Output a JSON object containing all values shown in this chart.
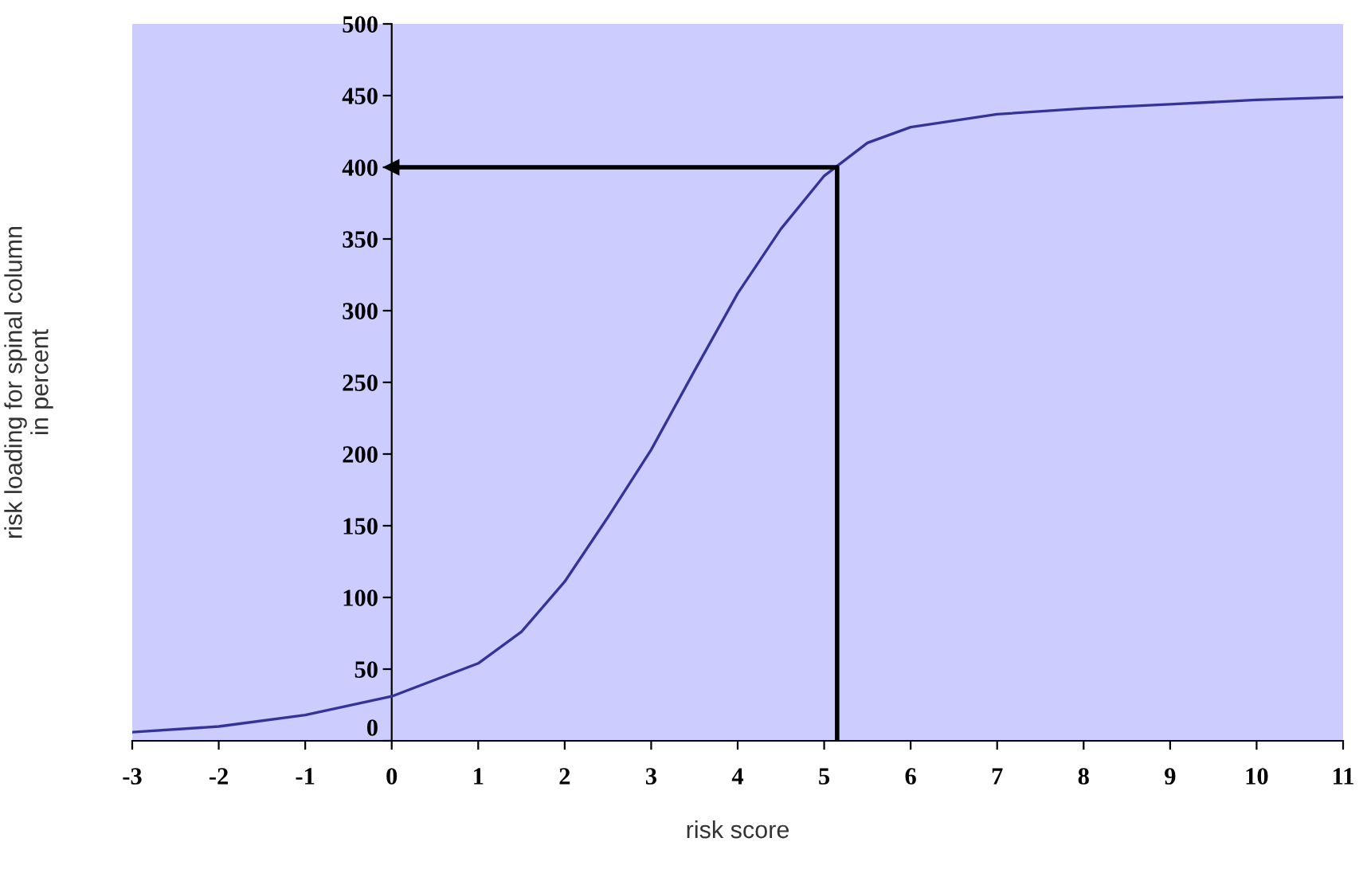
{
  "chart_data": {
    "type": "line",
    "xlabel": "risk score",
    "ylabel": "risk loading for spinal column\nin percent",
    "xlim": [
      -3,
      11
    ],
    "xticks": [
      -3,
      -2,
      -1,
      0,
      1,
      2,
      3,
      4,
      5,
      6,
      7,
      8,
      9,
      10,
      11
    ],
    "ylim": [
      0,
      500
    ],
    "yticks": [
      0,
      50,
      100,
      150,
      200,
      250,
      300,
      350,
      400,
      450,
      500
    ],
    "grid": false,
    "legend": false,
    "marker": "none",
    "line_style": "solid",
    "series": [
      {
        "color": "#333399",
        "x": [
          -3,
          -2,
          -1,
          0,
          1,
          1.5,
          2,
          2.5,
          3,
          3.5,
          4,
          4.5,
          5,
          5.5,
          6,
          7,
          8,
          9,
          10,
          11
        ],
        "values": [
          6,
          10,
          18,
          31,
          54,
          76,
          111,
          156,
          203,
          258,
          312,
          357,
          394,
          417,
          428,
          437,
          441,
          444,
          447,
          449
        ]
      },
      {
        "color": "#000000",
        "x": [
          5.15,
          5.15,
          0
        ],
        "values": [
          0,
          400,
          400
        ]
      }
    ]
  }
}
